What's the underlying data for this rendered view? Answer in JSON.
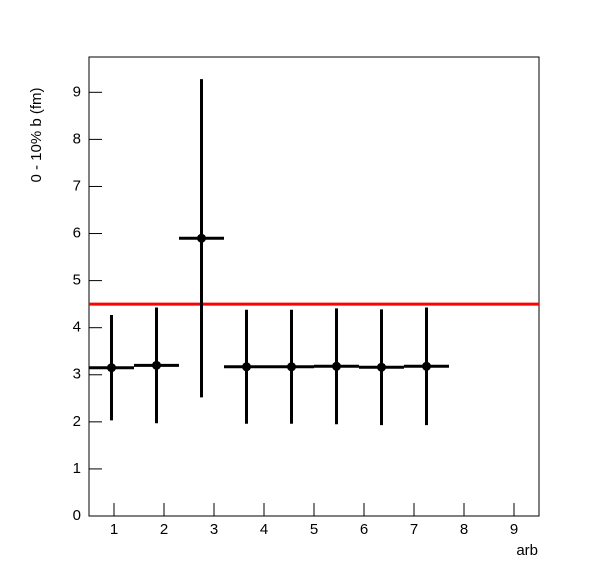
{
  "chart_data": {
    "type": "errorbar",
    "x_label": "arb",
    "y_label": "0 - 10% b (fm)",
    "xlim": [
      0.5,
      9.5
    ],
    "xticks": [
      1,
      2,
      3,
      4,
      5,
      6,
      7,
      8,
      9
    ],
    "ylim": [
      0,
      9.75
    ],
    "yticks": [
      0,
      1,
      2,
      3,
      4,
      5,
      6,
      7,
      8,
      9
    ],
    "series": [
      {
        "color": "#000000",
        "x": [
          0.95,
          1.85,
          2.75,
          3.65,
          4.55,
          5.45,
          6.35,
          7.25
        ],
        "xerr": [
          0.45,
          0.45,
          0.45,
          0.45,
          0.45,
          0.45,
          0.45,
          0.45
        ],
        "values": [
          3.15,
          3.2,
          5.9,
          3.17,
          3.17,
          3.18,
          3.16,
          3.18
        ],
        "yerr": [
          1.12,
          1.23,
          3.38,
          1.21,
          1.21,
          1.23,
          1.23,
          1.25
        ]
      }
    ],
    "hline": {
      "value": 4.5,
      "color": "#ff0000"
    }
  }
}
